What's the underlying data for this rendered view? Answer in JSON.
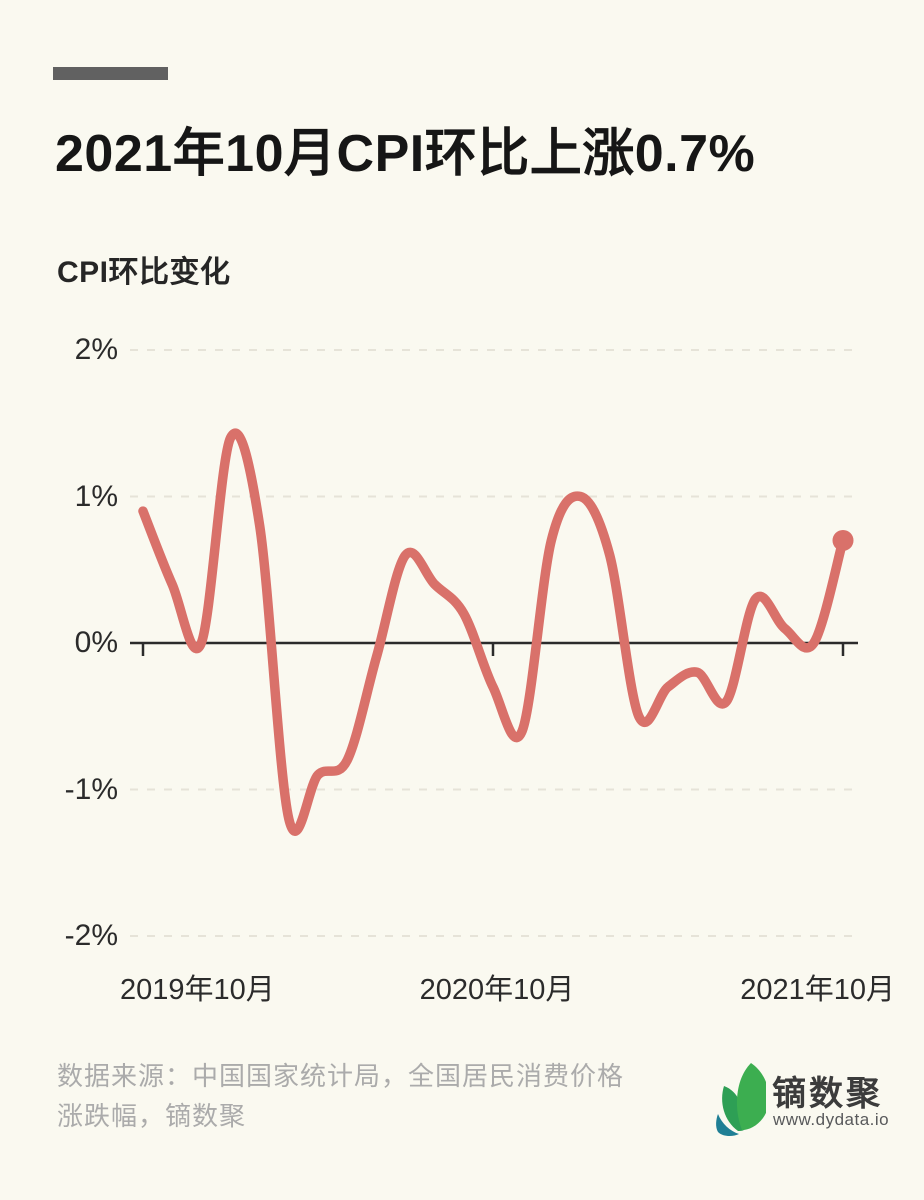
{
  "page": {
    "background_color": "#FAF9F0",
    "accent_bar_color": "#616161"
  },
  "header": {
    "title": "2021年10月CPI环比上涨0.7%",
    "subtitle": "CPI环比变化"
  },
  "chart_data": {
    "type": "line",
    "title": "CPI环比变化",
    "x": [
      "2019-10",
      "2019-11",
      "2019-12",
      "2020-01",
      "2020-02",
      "2020-03",
      "2020-04",
      "2020-05",
      "2020-06",
      "2020-07",
      "2020-08",
      "2020-09",
      "2020-10",
      "2020-11",
      "2020-12",
      "2021-01",
      "2021-02",
      "2021-03",
      "2021-04",
      "2021-05",
      "2021-06",
      "2021-07",
      "2021-08",
      "2021-09",
      "2021-10"
    ],
    "values": [
      0.9,
      0.4,
      0.0,
      1.4,
      0.8,
      -1.2,
      -0.9,
      -0.8,
      -0.1,
      0.6,
      0.4,
      0.2,
      -0.3,
      -0.6,
      0.7,
      1.0,
      0.6,
      -0.5,
      -0.3,
      -0.2,
      -0.4,
      0.3,
      0.1,
      0.0,
      0.7
    ],
    "unit": "%",
    "ylim": [
      -2,
      2
    ],
    "y_ticks": [
      {
        "label": "2%",
        "value": 2
      },
      {
        "label": "1%",
        "value": 1
      },
      {
        "label": "0%",
        "value": 0
      },
      {
        "label": "-1%",
        "value": -1
      },
      {
        "label": "-2%",
        "value": -2
      }
    ],
    "x_ticks": [
      {
        "label": "2019年10月",
        "index": 0,
        "align": "left"
      },
      {
        "label": "2020年10月",
        "index": 12,
        "align": "center"
      },
      {
        "label": "2021年10月",
        "index": 24,
        "align": "right"
      }
    ],
    "line_color": "#D9716A",
    "grid_color": "#E6E3D8",
    "axis_color": "#2B2B2B",
    "smooth": true,
    "end_dot": true,
    "grid": "horizontal-dashed",
    "legend": "none"
  },
  "footer": {
    "source_line1": "数据来源：中国国家统计局，全国居民消费价格",
    "source_line2": "涨跌幅，镝数聚",
    "logo_text": "镝数聚",
    "logo_url": "www.dydata.io",
    "logo_colors": {
      "leaf_main": "#3CAE50",
      "leaf_dark": "#2E9F55",
      "leaf_teal": "#1F7F95"
    }
  }
}
